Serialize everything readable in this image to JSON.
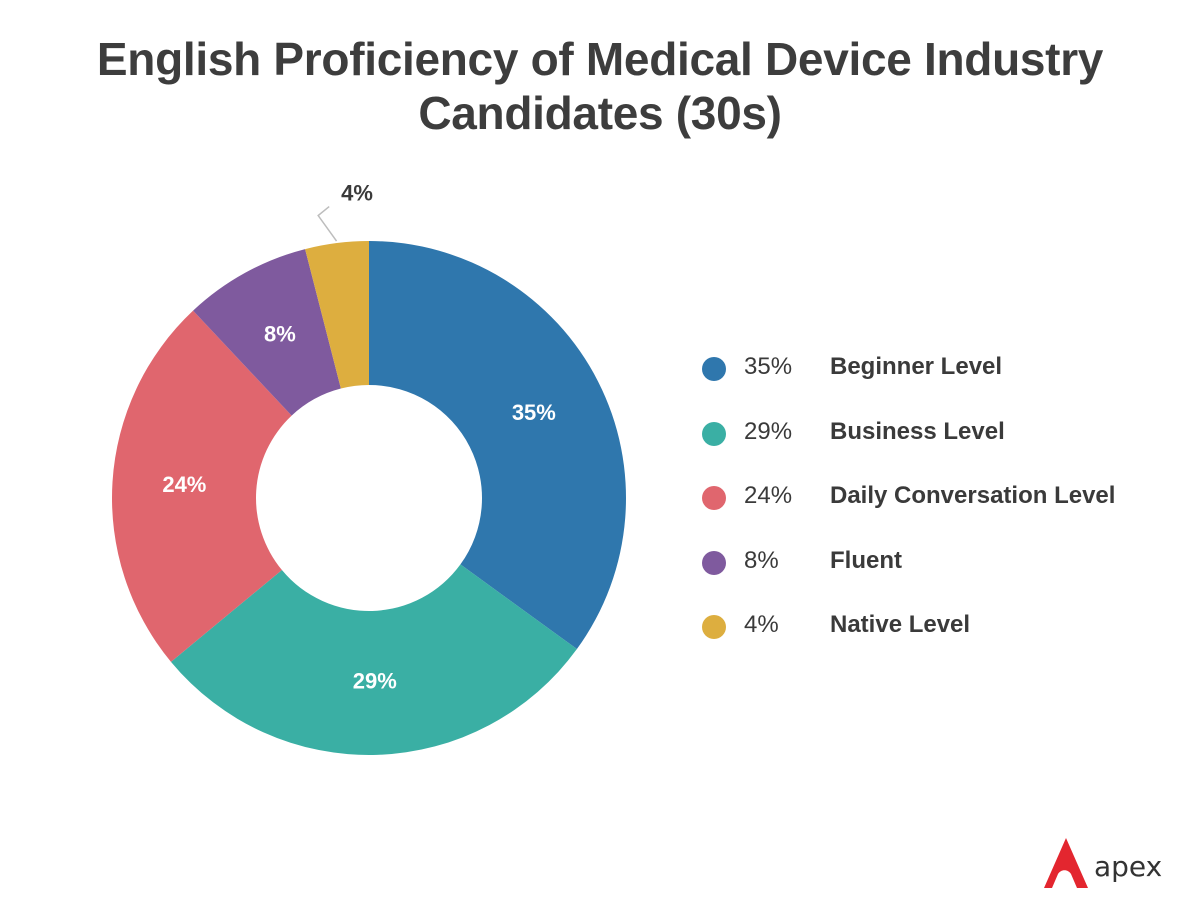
{
  "chart_data": {
    "type": "pie",
    "variant": "donut",
    "title_lines": [
      "English Proficiency of Medical Device Industry",
      "Candidates (30s)"
    ],
    "slices": [
      {
        "label": "Beginner Level",
        "value": 35,
        "display": "35%",
        "color": "#2f77ad"
      },
      {
        "label": "Business Level",
        "value": 29,
        "display": "29%",
        "color": "#3aafa4"
      },
      {
        "label": "Daily Conversation Level",
        "value": 24,
        "display": "24%",
        "color": "#e0666e"
      },
      {
        "label": "Fluent",
        "value": 8,
        "display": "8%",
        "color": "#7f5a9e"
      },
      {
        "label": "Native Level",
        "value": 4,
        "display": "4%",
        "color": "#ddae3f"
      }
    ],
    "legend_position": "right"
  },
  "brand": {
    "name": "apex",
    "color": "#e3262f"
  }
}
